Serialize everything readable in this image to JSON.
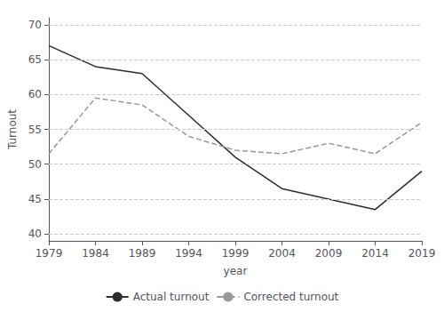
{
  "chart_data": {
    "type": "line",
    "xlabel": "year",
    "ylabel": "Turnout",
    "x": [
      1979,
      1984,
      1989,
      1994,
      1999,
      2004,
      2009,
      2014,
      2019
    ],
    "series": [
      {
        "name": "Actual turnout",
        "color": "#2d2d2d",
        "line_style": "solid",
        "values": [
          67.0,
          64.0,
          63.0,
          57.0,
          51.0,
          46.5,
          45.0,
          43.5,
          49.0
        ]
      },
      {
        "name": "Corrected turnout",
        "color": "#999999",
        "line_style": "dashed",
        "values": [
          51.5,
          59.5,
          58.5,
          54.0,
          52.0,
          51.5,
          53.0,
          51.5,
          56.0
        ]
      }
    ],
    "xlim": [
      1979,
      2019
    ],
    "xticks": [
      1979,
      1984,
      1989,
      1994,
      1999,
      2004,
      2009,
      2014,
      2019
    ],
    "ylim": [
      39,
      71
    ],
    "yticks": [
      40,
      45,
      50,
      55,
      60,
      65,
      70
    ],
    "grid": true,
    "legend": "bottom"
  }
}
